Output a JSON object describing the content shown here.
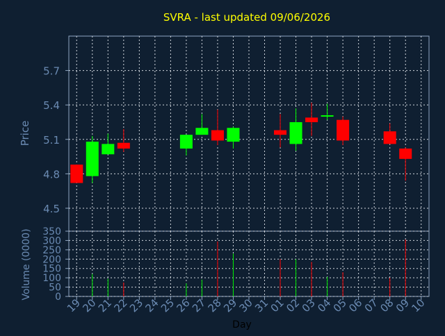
{
  "chart_data": [
    {
      "type": "candlestick",
      "title": "SVRA - last updated 09/06/2026",
      "ylabel": "Price",
      "ylim": [
        4.3,
        6.0
      ],
      "yticks": [
        "4.5",
        "4.8",
        "5.1",
        "5.4",
        "5.7"
      ],
      "grid": true,
      "candles": [
        {
          "day": "19",
          "open": 4.88,
          "high": 4.88,
          "low": 4.72,
          "close": 4.72
        },
        {
          "day": "20",
          "open": 4.78,
          "high": 5.13,
          "low": 4.72,
          "close": 5.08
        },
        {
          "day": "21",
          "open": 4.97,
          "high": 5.15,
          "low": 4.97,
          "close": 5.06
        },
        {
          "day": "22",
          "open": 5.07,
          "high": 5.19,
          "low": 4.99,
          "close": 5.02
        },
        {
          "day": "26",
          "open": 5.02,
          "high": 5.14,
          "low": 4.96,
          "close": 5.14
        },
        {
          "day": "27",
          "open": 5.14,
          "high": 5.32,
          "low": 5.14,
          "close": 5.2
        },
        {
          "day": "28",
          "open": 5.18,
          "high": 5.36,
          "low": 5.05,
          "close": 5.09
        },
        {
          "day": "29",
          "open": 5.08,
          "high": 5.21,
          "low": 5.02,
          "close": 5.2
        },
        {
          "day": "01",
          "open": 5.18,
          "high": 5.32,
          "low": 5.03,
          "close": 5.14
        },
        {
          "day": "02",
          "open": 5.06,
          "high": 5.37,
          "low": 5.0,
          "close": 5.25
        },
        {
          "day": "03",
          "open": 5.29,
          "high": 5.42,
          "low": 5.13,
          "close": 5.25
        },
        {
          "day": "04",
          "open": 5.3,
          "high": 5.41,
          "low": 5.27,
          "close": 5.31
        },
        {
          "day": "05",
          "open": 5.27,
          "high": 5.3,
          "low": 5.05,
          "close": 5.09
        },
        {
          "day": "08",
          "open": 5.17,
          "high": 5.24,
          "low": 5.06,
          "close": 5.06
        },
        {
          "day": "09",
          "open": 5.02,
          "high": 5.03,
          "low": 4.74,
          "close": 4.93
        }
      ]
    },
    {
      "type": "bar",
      "ylabel": "Volume (0000)",
      "xlabel": "Day",
      "ylim": [
        0,
        350
      ],
      "yticks": [
        "0",
        "50",
        "100",
        "150",
        "200",
        "250",
        "300",
        "350"
      ],
      "categories": [
        "19",
        "20",
        "21",
        "22",
        "23",
        "24",
        "25",
        "26",
        "27",
        "28",
        "29",
        "30",
        "31",
        "01",
        "02",
        "03",
        "04",
        "05",
        "06",
        "07",
        "08",
        "09",
        "10"
      ],
      "volumes": [
        {
          "day": "19",
          "value": 0,
          "color": "#ff0000"
        },
        {
          "day": "20",
          "value": 120,
          "color": "#00ee00"
        },
        {
          "day": "21",
          "value": 95,
          "color": "#00ee00"
        },
        {
          "day": "22",
          "value": 75,
          "color": "#ff0000"
        },
        {
          "day": "26",
          "value": 70,
          "color": "#00ee00"
        },
        {
          "day": "27",
          "value": 90,
          "color": "#00ee00"
        },
        {
          "day": "28",
          "value": 295,
          "color": "#ff0000"
        },
        {
          "day": "29",
          "value": 230,
          "color": "#00ee00"
        },
        {
          "day": "01",
          "value": 200,
          "color": "#ff0000"
        },
        {
          "day": "02",
          "value": 200,
          "color": "#00ee00"
        },
        {
          "day": "03",
          "value": 185,
          "color": "#ff0000"
        },
        {
          "day": "04",
          "value": 105,
          "color": "#00ee00"
        },
        {
          "day": "05",
          "value": 130,
          "color": "#ff0000"
        },
        {
          "day": "08",
          "value": 100,
          "color": "#ff0000"
        },
        {
          "day": "09",
          "value": 305,
          "color": "#ff0000"
        }
      ]
    }
  ],
  "colors": {
    "background": "#0f1f31",
    "title": "#ffff00",
    "text": "#6b8bb3",
    "axis": "#8fa6c2",
    "grid": "#d0d6dd",
    "up": "#00ff00",
    "down": "#ff0000"
  }
}
